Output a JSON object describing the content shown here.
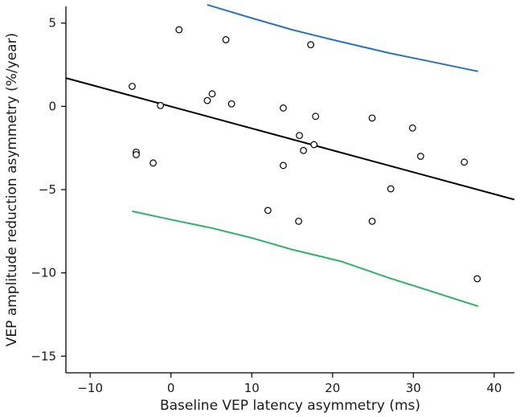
{
  "chart_data": {
    "type": "scatter",
    "title": "",
    "xlabel": "Baseline VEP latency asymmetry (ms)",
    "ylabel": "VEP amplitude reduction asymmetry (%/year)",
    "xlim": [
      -13,
      42.5
    ],
    "ylim": [
      -16,
      6
    ],
    "x_ticks": [
      -10,
      0,
      10,
      20,
      30,
      40
    ],
    "y_ticks": [
      -15,
      -10,
      -5,
      0,
      5
    ],
    "grid": false,
    "legend": "none",
    "points": [
      {
        "x": -4.8,
        "y": 1.2
      },
      {
        "x": 1.0,
        "y": 4.6
      },
      {
        "x": 6.8,
        "y": 4.0
      },
      {
        "x": 17.3,
        "y": 3.7
      },
      {
        "x": 4.5,
        "y": 0.35
      },
      {
        "x": 5.1,
        "y": 0.75
      },
      {
        "x": 7.5,
        "y": 0.15
      },
      {
        "x": -1.3,
        "y": 0.05
      },
      {
        "x": 13.9,
        "y": -0.1
      },
      {
        "x": 17.9,
        "y": -0.6
      },
      {
        "x": 24.9,
        "y": -0.7
      },
      {
        "x": 29.9,
        "y": -1.3
      },
      {
        "x": 15.9,
        "y": -1.75
      },
      {
        "x": 17.7,
        "y": -2.3
      },
      {
        "x": 16.4,
        "y": -2.65
      },
      {
        "x": -4.3,
        "y": -2.75
      },
      {
        "x": -4.3,
        "y": -2.9
      },
      {
        "x": -2.2,
        "y": -3.4
      },
      {
        "x": 13.9,
        "y": -3.55
      },
      {
        "x": 30.9,
        "y": -3.0
      },
      {
        "x": 36.3,
        "y": -3.35
      },
      {
        "x": 27.2,
        "y": -4.95
      },
      {
        "x": 12.0,
        "y": -6.25
      },
      {
        "x": 15.8,
        "y": -6.9
      },
      {
        "x": 24.9,
        "y": -6.9
      },
      {
        "x": 37.9,
        "y": -10.35
      }
    ],
    "lines": [
      {
        "color": "#000000",
        "x": [
          -13,
          42.5
        ],
        "y": [
          1.7,
          -5.6
        ]
      },
      {
        "color": "#2b73b3",
        "x": [
          4.5,
          10,
          15,
          20,
          27,
          38
        ],
        "y": [
          6.1,
          5.3,
          4.6,
          4.0,
          3.2,
          2.1
        ]
      },
      {
        "color": "#33b06a",
        "x": [
          -4.8,
          0,
          5,
          10,
          15,
          21,
          27,
          38
        ],
        "y": [
          -6.3,
          -6.8,
          -7.3,
          -7.9,
          -8.6,
          -9.3,
          -10.3,
          -12.0
        ]
      }
    ],
    "colors": {
      "axis": "#000000",
      "marker": "#000000"
    }
  }
}
